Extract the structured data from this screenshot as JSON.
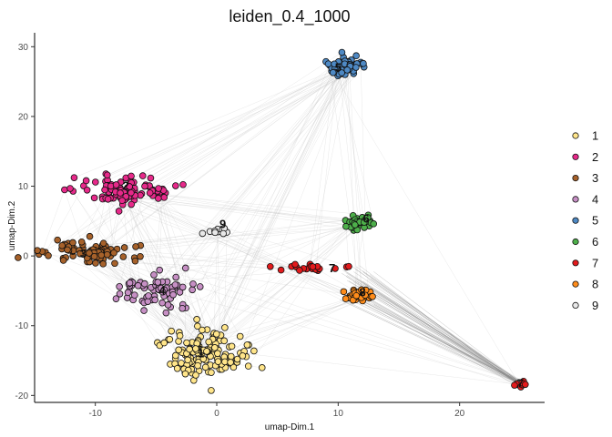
{
  "chart_data": {
    "type": "scatter",
    "title": "leiden_0.4_1000",
    "xlabel": "umap-Dim.1",
    "ylabel": "umap-Dim.2",
    "xlim": [
      -15,
      27
    ],
    "ylim": [
      -21,
      32
    ],
    "xticks": [
      -10,
      0,
      10,
      20
    ],
    "yticks": [
      -20,
      -10,
      0,
      10,
      20,
      30
    ],
    "grid": false,
    "legend_position": "right",
    "clusters": [
      {
        "name": "1",
        "color": "#FFE58A",
        "center": [
          -0.8,
          -14.0
        ],
        "spread": [
          2.2,
          2.4
        ],
        "count": 150
      },
      {
        "name": "2",
        "color": "#E7298A",
        "center": [
          -7.5,
          9.3
        ],
        "spread": [
          2.3,
          1.4
        ],
        "count": 100
      },
      {
        "name": "3",
        "color": "#A6612A",
        "center": [
          -10.5,
          0.7
        ],
        "spread": [
          2.6,
          1.3
        ],
        "count": 80
      },
      {
        "name": "4",
        "color": "#C68FC4",
        "center": [
          -5.0,
          -5.0
        ],
        "spread": [
          2.2,
          1.6
        ],
        "count": 70
      },
      {
        "name": "5",
        "color": "#4E89C4",
        "center": [
          10.6,
          27.2
        ],
        "spread": [
          0.9,
          0.9
        ],
        "count": 60
      },
      {
        "name": "6",
        "color": "#4DAF4A",
        "center": [
          11.6,
          4.8
        ],
        "spread": [
          0.9,
          0.6
        ],
        "count": 40
      },
      {
        "name": "7",
        "color": "#E31A1C",
        "center": [
          7.5,
          -1.8
        ],
        "spread": [
          1.8,
          0.4
        ],
        "count": 20
      },
      {
        "name": "8",
        "color": "#FF8C1A",
        "center": [
          11.6,
          -5.8
        ],
        "spread": [
          1.0,
          0.7
        ],
        "count": 30
      },
      {
        "name": "9",
        "color": "#E8E8E8",
        "center": [
          -0.2,
          3.5
        ],
        "spread": [
          0.7,
          0.5
        ],
        "count": 10
      },
      {
        "name": "7",
        "color": "#E31A1C",
        "center": [
          25.0,
          -18.3
        ],
        "spread": [
          0.3,
          0.3
        ],
        "count": 8,
        "legend": false
      }
    ],
    "labels": [
      {
        "text": "1",
        "x": -1.3,
        "y": -14.0
      },
      {
        "text": "2",
        "x": -7.5,
        "y": 10.0
      },
      {
        "text": "3",
        "x": -11.0,
        "y": 0.3
      },
      {
        "text": "4",
        "x": -4.5,
        "y": -5.0
      },
      {
        "text": "5",
        "x": 10.0,
        "y": 27.0
      },
      {
        "text": "6",
        "x": 12.3,
        "y": 5.3
      },
      {
        "text": "7",
        "x": 9.5,
        "y": -1.8
      },
      {
        "text": "8",
        "x": 12.0,
        "y": -5.3
      },
      {
        "text": "9",
        "x": 0.5,
        "y": 4.5
      },
      {
        "text": "7",
        "x": 25.0,
        "y": -18.3
      }
    ],
    "legend": [
      "1",
      "2",
      "3",
      "4",
      "5",
      "6",
      "7",
      "8",
      "9"
    ],
    "edge_color": "#bfbfbf"
  }
}
